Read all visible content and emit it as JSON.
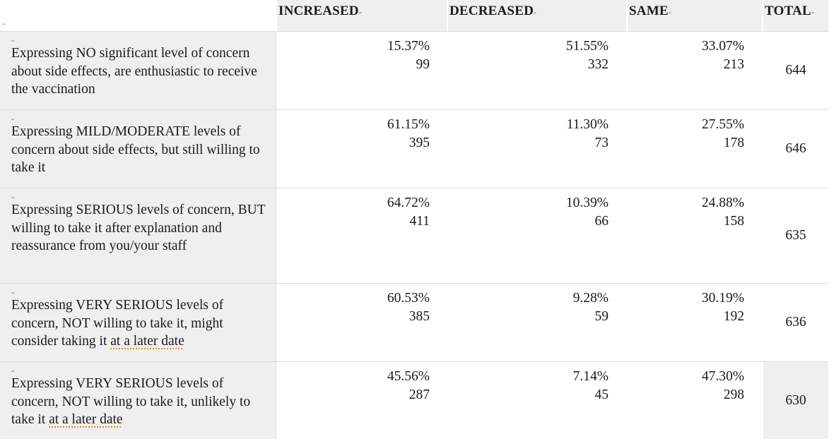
{
  "marker": "-",
  "header": {
    "increased": "INCREASED",
    "decreased": "DECREASED",
    "same": "SAME",
    "total": "TOTAL"
  },
  "rows": [
    {
      "label": "Expressing NO significant level of concern about side effects, are enthusiastic to receive the vaccination",
      "label_underlined": "",
      "increased_pct": "15.37%",
      "increased_n": "99",
      "decreased_pct": "51.55%",
      "decreased_n": "332",
      "same_pct": "33.07%",
      "same_n": "213",
      "total": "644"
    },
    {
      "label": "Expressing MILD/MODERATE levels of concern about side effects, but still willing to take it",
      "label_underlined": "",
      "increased_pct": "61.15%",
      "increased_n": "395",
      "decreased_pct": "11.30%",
      "decreased_n": "73",
      "same_pct": "27.55%",
      "same_n": "178",
      "total": "646"
    },
    {
      "label": "Expressing SERIOUS levels of concern, BUT willing to take it after explanation and reassurance from you/your staff",
      "label_underlined": "",
      "increased_pct": "64.72%",
      "increased_n": "411",
      "decreased_pct": "10.39%",
      "decreased_n": "66",
      "same_pct": "24.88%",
      "same_n": "158",
      "total": "635"
    },
    {
      "label": "Expressing VERY SERIOUS levels of concern, NOT willing to take it, might consider taking it ",
      "label_underlined": "at a later date",
      "increased_pct": "60.53%",
      "increased_n": "385",
      "decreased_pct": "9.28%",
      "decreased_n": "59",
      "same_pct": "30.19%",
      "same_n": "192",
      "total": "636"
    },
    {
      "label": "Expressing VERY SERIOUS levels of concern, NOT willing to take it, unlikely to take it ",
      "label_underlined": "at a later date",
      "increased_pct": "45.56%",
      "increased_n": "287",
      "decreased_pct": "7.14%",
      "decreased_n": "45",
      "same_pct": "47.30%",
      "same_n": "298",
      "total": "630"
    }
  ]
}
